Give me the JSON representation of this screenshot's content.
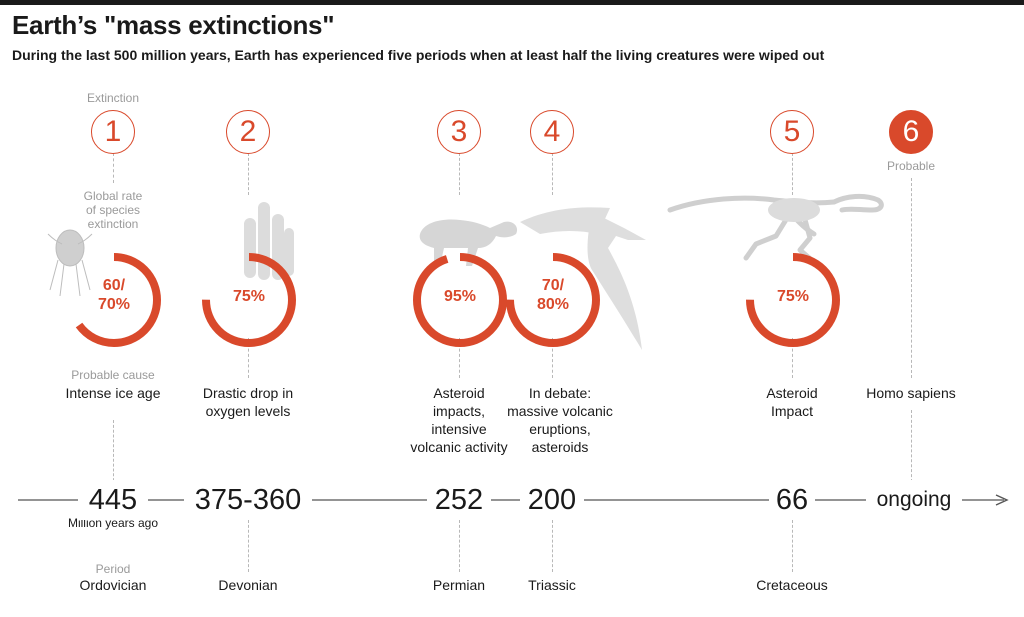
{
  "header": {
    "title": "Earth’s \"mass extinctions\"",
    "subtitle": "During the last 500 million years, Earth has experienced five periods when at least half the living creatures were wiped out"
  },
  "legend": {
    "extinction": "Extinction",
    "rate": "Global rate\nof species\nextinction",
    "cause": "Probable cause",
    "period": "Period",
    "unit": "Million years ago"
  },
  "colors": {
    "accent": "#d9492b",
    "gray": "#9a9a9a",
    "silhouette": "#d3d3d3"
  },
  "extinctions": [
    {
      "number": "1",
      "rate_text": "60/\n70%",
      "rate_value": 0.65,
      "cause": "Intense ice age",
      "year": "445",
      "period": "Ordovician",
      "silhouette": "trilobite-icon"
    },
    {
      "number": "2",
      "rate_text": "75%",
      "rate_value": 0.75,
      "cause": "Drastic drop in\noxygen levels",
      "year": "375-360",
      "period": "Devonian",
      "silhouette": "coral-icon"
    },
    {
      "number": "3",
      "rate_text": "95%",
      "rate_value": 0.95,
      "cause": "Asteroid\nimpacts,\nintensive\nvolcanic activity",
      "year": "252",
      "period": "Permian",
      "silhouette": "synapsid-skeleton-icon"
    },
    {
      "number": "4",
      "rate_text": "70/\n80%",
      "rate_value": 0.75,
      "cause": "In debate:\nmassive volcanic\neruptions,\nasteroids",
      "year": "200",
      "period": "Triassic",
      "silhouette": "pterosaur-icon"
    },
    {
      "number": "5",
      "rate_text": "75%",
      "rate_value": 0.75,
      "cause": "Asteroid\nImpact",
      "year": "66",
      "period": "Cretaceous",
      "silhouette": "dinosaur-skeleton-icon"
    },
    {
      "number": "6",
      "status": "Probable",
      "cause": "Homo sapiens",
      "year": "ongoing"
    }
  ]
}
